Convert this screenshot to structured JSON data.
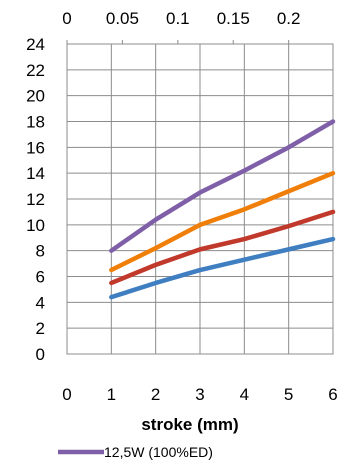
{
  "chart_data": {
    "type": "line",
    "xlabel": "stroke (mm)",
    "ylabel": "",
    "x_ticks": [
      "0",
      "1",
      "2",
      "3",
      "4",
      "5",
      "6"
    ],
    "y_ticks": [
      "0",
      "2",
      "4",
      "6",
      "8",
      "10",
      "12",
      "14",
      "16",
      "18",
      "20",
      "22",
      "24"
    ],
    "secondary_x_ticks": [
      "0",
      "0.05",
      "0.1",
      "0.15",
      "0.2"
    ],
    "xlim": [
      0,
      6
    ],
    "ylim": [
      0,
      24
    ],
    "secondary_xlim": [
      0,
      0.24
    ],
    "grid": true,
    "legend_position": "bottom",
    "series": [
      {
        "name": "12,5W (100%ED)",
        "color": "#7f60a8",
        "x": [
          1,
          2,
          3,
          4,
          5,
          6
        ],
        "y": [
          8,
          10.4,
          12.5,
          14.2,
          16,
          18
        ]
      },
      {
        "name": "",
        "color": "#f07f09",
        "x": [
          1,
          2,
          3,
          4,
          5,
          6
        ],
        "y": [
          6.5,
          8.2,
          10,
          11.2,
          12.6,
          14
        ]
      },
      {
        "name": "",
        "color": "#c0392b",
        "x": [
          1,
          2,
          3,
          4,
          5,
          6
        ],
        "y": [
          5.5,
          6.9,
          8.1,
          8.9,
          9.9,
          11
        ]
      },
      {
        "name": "",
        "color": "#3f7fc1",
        "x": [
          1,
          2,
          3,
          4,
          5,
          6
        ],
        "y": [
          4.4,
          5.5,
          6.5,
          7.3,
          8.1,
          8.9
        ]
      }
    ]
  }
}
